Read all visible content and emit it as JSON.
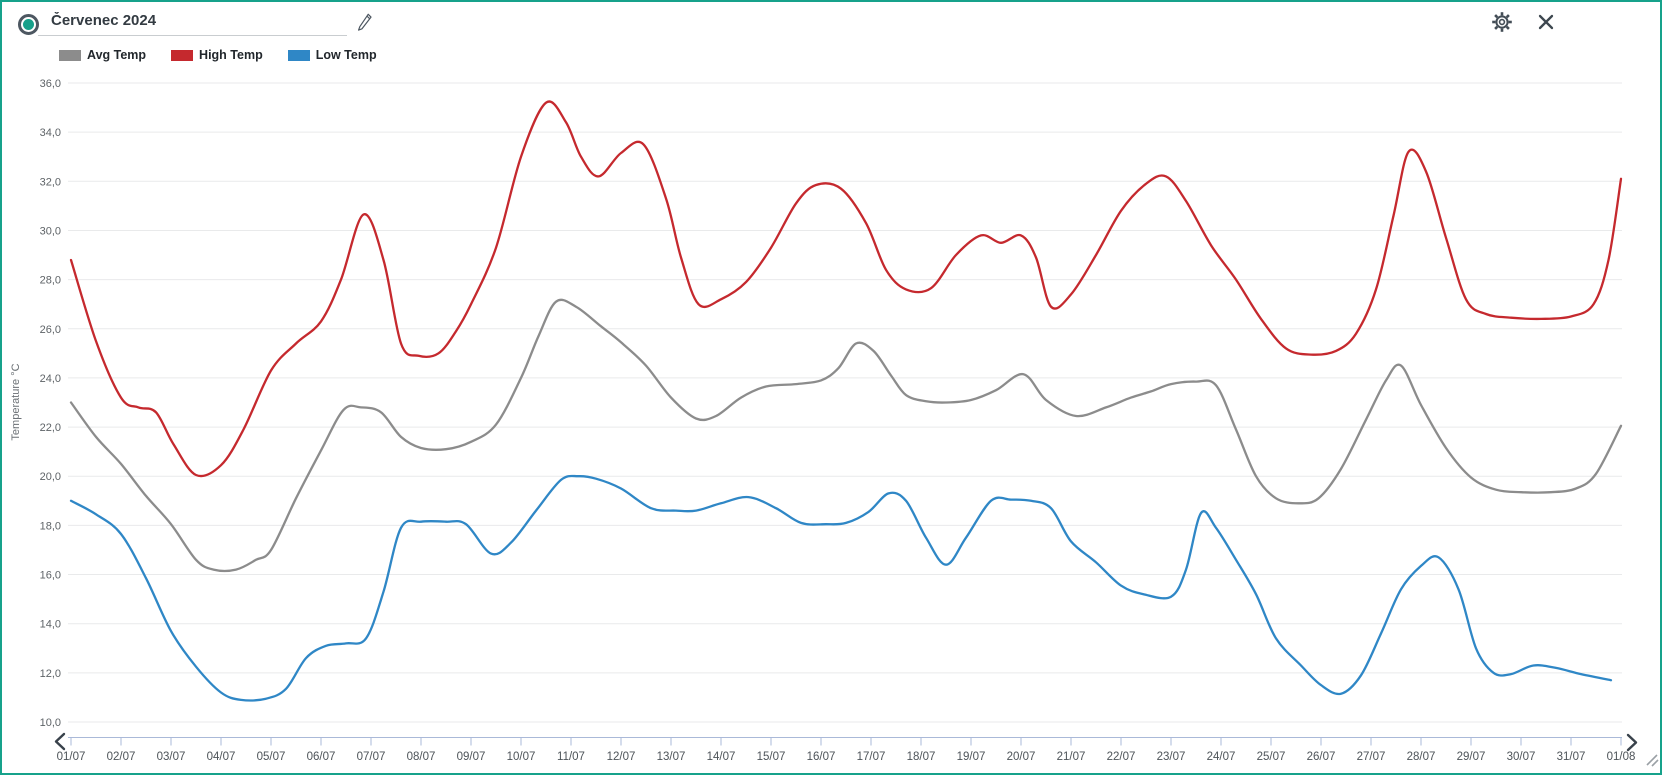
{
  "header": {
    "title": "Červenec 2024"
  },
  "legend": [
    {
      "label": "Avg Temp",
      "color": "#8c8c8c"
    },
    {
      "label": "High Temp",
      "color": "#c5292e"
    },
    {
      "label": "Low Temp",
      "color": "#2f87c6"
    }
  ],
  "colors": {
    "frame_border": "#17a28b",
    "radio_dot": "#17a08a",
    "icon": "#434d56",
    "gridline": "#e9eaeb",
    "y_label": "#5e6367",
    "x_label": "#4d5358",
    "axis_strip": "#aab9d8",
    "chevron": "#39424b",
    "resize_handle": "#9aa0a5"
  },
  "chart_data": {
    "type": "line",
    "title": "Červenec 2024",
    "xlabel": "",
    "ylabel": "Temperature °C",
    "ylim": [
      10,
      36
    ],
    "y_step": 2,
    "grid": "horizontal only",
    "legend_position": "top-left",
    "y_axis_tick_labels": [
      "36,0",
      "34,0",
      "32,0",
      "30,0",
      "28,0",
      "26,0",
      "24,0",
      "22,0",
      "20,0",
      "18,0",
      "16,0",
      "14,0",
      "12,0",
      "10,0"
    ],
    "x_axis_tick_labels": [
      "01/07",
      "02/07",
      "03/07",
      "04/07",
      "05/07",
      "06/07",
      "07/07",
      "08/07",
      "09/07",
      "10/07",
      "11/07",
      "12/07",
      "13/07",
      "14/07",
      "15/07",
      "16/07",
      "17/07",
      "18/07",
      "19/07",
      "20/07",
      "21/07",
      "22/07",
      "23/07",
      "24/07",
      "25/07",
      "26/07",
      "27/07",
      "28/07",
      "29/07",
      "30/07",
      "31/07",
      "01/08"
    ],
    "x_unit": "day of July 2024 (32 = 01/08), curves sampled from smoothed plot",
    "series": [
      {
        "name": "Avg Temp",
        "color": "#8c8c8c",
        "points": [
          [
            1,
            23
          ],
          [
            1.5,
            21.6
          ],
          [
            2,
            20.5
          ],
          [
            2.5,
            19.2
          ],
          [
            3,
            18.05
          ],
          [
            3.5,
            16.6
          ],
          [
            3.85,
            16.2
          ],
          [
            4.3,
            16.2
          ],
          [
            4.7,
            16.6
          ],
          [
            5,
            17
          ],
          [
            5.5,
            19.1
          ],
          [
            6,
            21.05
          ],
          [
            6.45,
            22.7
          ],
          [
            6.8,
            22.8
          ],
          [
            7.2,
            22.6
          ],
          [
            7.6,
            21.6
          ],
          [
            8,
            21.15
          ],
          [
            8.5,
            21.1
          ],
          [
            9,
            21.4
          ],
          [
            9.5,
            22.1
          ],
          [
            10,
            24
          ],
          [
            10.35,
            25.7
          ],
          [
            10.7,
            27.1
          ],
          [
            11.1,
            26.9
          ],
          [
            11.6,
            26.1
          ],
          [
            12,
            25.45
          ],
          [
            12.5,
            24.5
          ],
          [
            13,
            23.2
          ],
          [
            13.5,
            22.35
          ],
          [
            13.9,
            22.45
          ],
          [
            14.4,
            23.2
          ],
          [
            14.9,
            23.65
          ],
          [
            15.5,
            23.75
          ],
          [
            16,
            23.9
          ],
          [
            16.35,
            24.4
          ],
          [
            16.7,
            25.4
          ],
          [
            17.05,
            25.1
          ],
          [
            17.4,
            24.1
          ],
          [
            17.7,
            23.3
          ],
          [
            18.1,
            23.05
          ],
          [
            18.5,
            23
          ],
          [
            19,
            23.1
          ],
          [
            19.5,
            23.5
          ],
          [
            20.05,
            24.15
          ],
          [
            20.5,
            23.1
          ],
          [
            21.1,
            22.45
          ],
          [
            21.7,
            22.8
          ],
          [
            22.2,
            23.2
          ],
          [
            22.6,
            23.45
          ],
          [
            23,
            23.75
          ],
          [
            23.5,
            23.85
          ],
          [
            23.9,
            23.7
          ],
          [
            24.3,
            21.9
          ],
          [
            24.7,
            20
          ],
          [
            25.1,
            19.1
          ],
          [
            25.55,
            18.9
          ],
          [
            25.95,
            19.1
          ],
          [
            26.4,
            20.3
          ],
          [
            26.9,
            22.3
          ],
          [
            27.3,
            23.9
          ],
          [
            27.6,
            24.5
          ],
          [
            28,
            22.9
          ],
          [
            28.5,
            21.15
          ],
          [
            29,
            19.95
          ],
          [
            29.5,
            19.45
          ],
          [
            30,
            19.35
          ],
          [
            30.6,
            19.35
          ],
          [
            31.1,
            19.5
          ],
          [
            31.5,
            20.1
          ],
          [
            32,
            22.05
          ]
        ]
      },
      {
        "name": "High Temp",
        "color": "#c5292e",
        "points": [
          [
            1,
            28.8
          ],
          [
            1.5,
            25.5
          ],
          [
            2,
            23.2
          ],
          [
            2.35,
            22.8
          ],
          [
            2.7,
            22.6
          ],
          [
            3.05,
            21.3
          ],
          [
            3.5,
            20.05
          ],
          [
            4,
            20.45
          ],
          [
            4.45,
            21.9
          ],
          [
            5,
            24.3
          ],
          [
            5.5,
            25.4
          ],
          [
            6,
            26.3
          ],
          [
            6.4,
            28
          ],
          [
            6.85,
            30.65
          ],
          [
            7.25,
            28.8
          ],
          [
            7.6,
            25.4
          ],
          [
            7.95,
            24.9
          ],
          [
            8.35,
            25
          ],
          [
            8.7,
            25.9
          ],
          [
            9,
            27
          ],
          [
            9.5,
            29.3
          ],
          [
            10,
            33
          ],
          [
            10.5,
            35.2
          ],
          [
            10.9,
            34.4
          ],
          [
            11.2,
            33
          ],
          [
            11.55,
            32.2
          ],
          [
            12,
            33.15
          ],
          [
            12.45,
            33.5
          ],
          [
            12.9,
            31.3
          ],
          [
            13.2,
            28.9
          ],
          [
            13.55,
            27
          ],
          [
            14,
            27.2
          ],
          [
            14.5,
            27.9
          ],
          [
            15,
            29.3
          ],
          [
            15.5,
            31.1
          ],
          [
            15.9,
            31.85
          ],
          [
            16.4,
            31.7
          ],
          [
            16.9,
            30.3
          ],
          [
            17.3,
            28.4
          ],
          [
            17.7,
            27.6
          ],
          [
            18.2,
            27.65
          ],
          [
            18.7,
            29
          ],
          [
            19.2,
            29.8
          ],
          [
            19.6,
            29.5
          ],
          [
            20,
            29.8
          ],
          [
            20.3,
            28.9
          ],
          [
            20.6,
            26.9
          ],
          [
            21,
            27.4
          ],
          [
            21.5,
            29
          ],
          [
            22,
            30.8
          ],
          [
            22.5,
            31.9
          ],
          [
            22.9,
            32.2
          ],
          [
            23.3,
            31.2
          ],
          [
            23.8,
            29.4
          ],
          [
            24.3,
            28
          ],
          [
            24.8,
            26.4
          ],
          [
            25.3,
            25.2
          ],
          [
            25.8,
            24.95
          ],
          [
            26.3,
            25.1
          ],
          [
            26.7,
            25.8
          ],
          [
            27.1,
            27.6
          ],
          [
            27.45,
            30.6
          ],
          [
            27.75,
            33.2
          ],
          [
            28.1,
            32.4
          ],
          [
            28.5,
            29.7
          ],
          [
            28.9,
            27.2
          ],
          [
            29.3,
            26.6
          ],
          [
            29.8,
            26.45
          ],
          [
            30.4,
            26.4
          ],
          [
            31,
            26.5
          ],
          [
            31.45,
            27
          ],
          [
            31.75,
            28.8
          ],
          [
            32,
            32.1
          ]
        ]
      },
      {
        "name": "Low Temp",
        "color": "#2f87c6",
        "points": [
          [
            1,
            19
          ],
          [
            1.5,
            18.45
          ],
          [
            2,
            17.65
          ],
          [
            2.5,
            15.85
          ],
          [
            3,
            13.7
          ],
          [
            3.5,
            12.25
          ],
          [
            4,
            11.2
          ],
          [
            4.4,
            10.9
          ],
          [
            4.9,
            10.95
          ],
          [
            5.3,
            11.35
          ],
          [
            5.7,
            12.6
          ],
          [
            6.1,
            13.1
          ],
          [
            6.5,
            13.2
          ],
          [
            6.9,
            13.4
          ],
          [
            7.25,
            15.3
          ],
          [
            7.6,
            17.9
          ],
          [
            8,
            18.15
          ],
          [
            8.5,
            18.15
          ],
          [
            8.9,
            18.05
          ],
          [
            9.4,
            16.85
          ],
          [
            9.8,
            17.3
          ],
          [
            10.3,
            18.6
          ],
          [
            10.8,
            19.85
          ],
          [
            11.15,
            20
          ],
          [
            11.5,
            19.9
          ],
          [
            12,
            19.5
          ],
          [
            12.6,
            18.7
          ],
          [
            13.1,
            18.6
          ],
          [
            13.5,
            18.6
          ],
          [
            14,
            18.9
          ],
          [
            14.55,
            19.15
          ],
          [
            15.1,
            18.7
          ],
          [
            15.6,
            18.1
          ],
          [
            16.1,
            18.05
          ],
          [
            16.5,
            18.1
          ],
          [
            16.95,
            18.55
          ],
          [
            17.35,
            19.3
          ],
          [
            17.7,
            19
          ],
          [
            18.1,
            17.5
          ],
          [
            18.5,
            16.4
          ],
          [
            18.9,
            17.5
          ],
          [
            19.4,
            19
          ],
          [
            19.8,
            19.05
          ],
          [
            20.2,
            19
          ],
          [
            20.6,
            18.7
          ],
          [
            21,
            17.35
          ],
          [
            21.5,
            16.5
          ],
          [
            22,
            15.55
          ],
          [
            22.45,
            15.2
          ],
          [
            23,
            15.1
          ],
          [
            23.3,
            16.2
          ],
          [
            23.6,
            18.5
          ],
          [
            23.9,
            17.9
          ],
          [
            24.3,
            16.6
          ],
          [
            24.7,
            15.2
          ],
          [
            25.1,
            13.4
          ],
          [
            25.6,
            12.3
          ],
          [
            26,
            11.5
          ],
          [
            26.4,
            11.15
          ],
          [
            26.8,
            11.9
          ],
          [
            27.2,
            13.6
          ],
          [
            27.6,
            15.4
          ],
          [
            28,
            16.35
          ],
          [
            28.35,
            16.7
          ],
          [
            28.75,
            15.4
          ],
          [
            29.1,
            13
          ],
          [
            29.45,
            12
          ],
          [
            29.8,
            11.95
          ],
          [
            30.25,
            12.3
          ],
          [
            30.7,
            12.2
          ],
          [
            31.2,
            11.95
          ],
          [
            31.8,
            11.7
          ]
        ]
      }
    ]
  }
}
